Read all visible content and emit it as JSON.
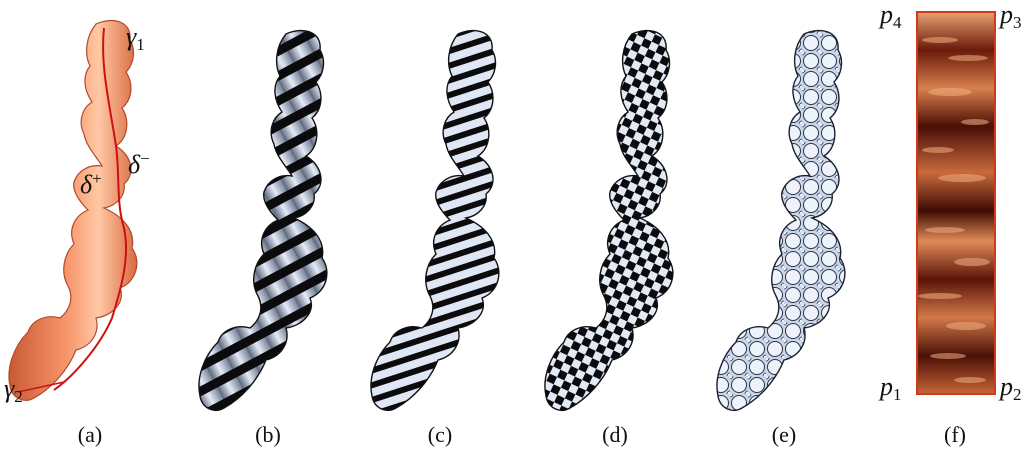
{
  "figure": {
    "panels": [
      {
        "caption": "(a)",
        "style": "colon-surface"
      },
      {
        "caption": "(b)",
        "style": "stripe-texture"
      },
      {
        "caption": "(c)",
        "style": "stripe-texture-dense"
      },
      {
        "caption": "(d)",
        "style": "checkerboard-texture"
      },
      {
        "caption": "(e)",
        "style": "circle-packing-texture"
      },
      {
        "caption": "(f)",
        "style": "flattened-map"
      }
    ],
    "labels": {
      "gamma1": {
        "base": "γ",
        "sub": "1"
      },
      "gamma2": {
        "base": "γ",
        "sub": "2"
      },
      "delta_plus": {
        "base": "δ",
        "sup": "+"
      },
      "delta_minus": {
        "base": "δ",
        "sup": "−"
      },
      "p1": {
        "base": "p",
        "sub": "1"
      },
      "p2": {
        "base": "p",
        "sub": "2"
      },
      "p3": {
        "base": "p",
        "sub": "3"
      },
      "p4": {
        "base": "p",
        "sub": "4"
      }
    },
    "colors": {
      "surface_orange": "#f2825a",
      "surface_highlight": "#ffd0b0",
      "cut_line": "#d01010",
      "metal_light": "#d8e2f2",
      "metal_dark": "#0a0a0a",
      "map_bg": "#5a1408",
      "map_border": "#d03a1a"
    }
  }
}
